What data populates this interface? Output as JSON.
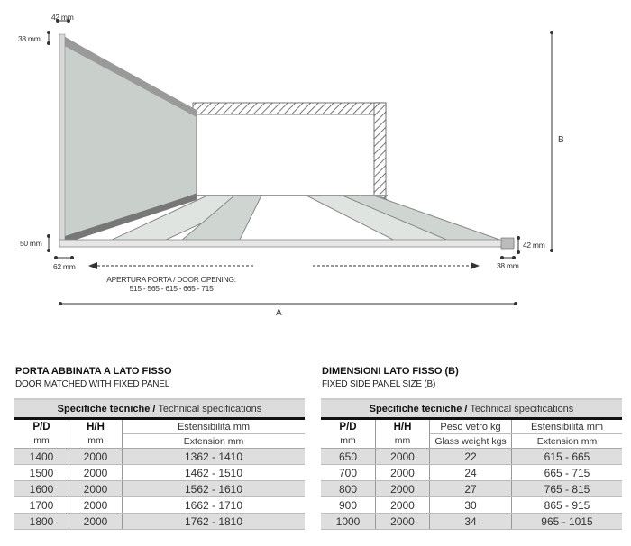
{
  "diagram": {
    "dim_42_top": "42 mm",
    "dim_38_left": "38 mm",
    "dim_50": "50 mm",
    "dim_62": "62 mm",
    "dim_42_right": "42 mm",
    "dim_38_right": "38 mm",
    "label_B": "B",
    "label_A": "A",
    "door_opening_title": "APERTURA PORTA / DOOR OPENING:",
    "door_opening_values": "515 - 565 - 615 - 665 - 715"
  },
  "left_section": {
    "title": "PORTA ABBINATA A LATO FISSO",
    "subtitle": "DOOR MATCHED WITH FIXED PANEL",
    "band_bold": "Specifiche tecniche /",
    "band_rest": " Technical specifications",
    "headers": [
      "P/D",
      "H/H",
      "Estensibilità mm"
    ],
    "units": [
      "mm",
      "mm",
      "Extension mm"
    ],
    "rows": [
      [
        "1400",
        "2000",
        "1362 - 1410"
      ],
      [
        "1500",
        "2000",
        "1462 - 1510"
      ],
      [
        "1600",
        "2000",
        "1562 - 1610"
      ],
      [
        "1700",
        "2000",
        "1662 - 1710"
      ],
      [
        "1800",
        "2000",
        "1762 - 1810"
      ]
    ]
  },
  "right_section": {
    "title": "DIMENSIONI LATO FISSO (B)",
    "subtitle": "FIXED SIDE PANEL SIZE (B)",
    "band_bold": "Specifiche tecniche /",
    "band_rest": " Technical specifications",
    "headers": [
      "P/D",
      "H/H",
      "Peso vetro kg",
      "Estensibilità mm"
    ],
    "units": [
      "mm",
      "mm",
      "Glass weight kgs",
      "Extension mm"
    ],
    "rows": [
      [
        "650",
        "2000",
        "22",
        "615 - 665"
      ],
      [
        "700",
        "2000",
        "24",
        "665 - 715"
      ],
      [
        "800",
        "2000",
        "27",
        "765 - 815"
      ],
      [
        "900",
        "2000",
        "30",
        "865 - 915"
      ],
      [
        "1000",
        "2000",
        "34",
        "965 - 1015"
      ]
    ]
  }
}
